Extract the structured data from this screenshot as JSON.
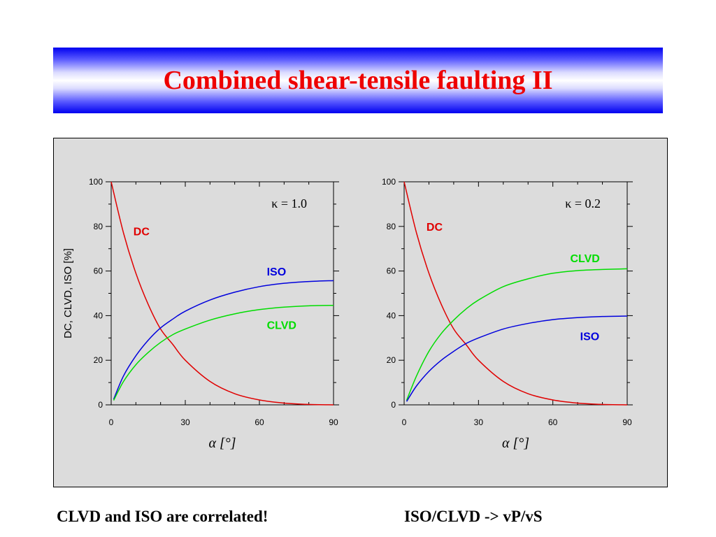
{
  "slide": {
    "title": "Combined shear-tensile faulting II",
    "caption_left": "CLVD and ISO are correlated!",
    "caption_right": "ISO/CLVD -> vP/vS"
  },
  "colors": {
    "DC": "#e00000",
    "ISO": "#0000dd",
    "CLVD": "#00dd00",
    "title": "#ee0000",
    "panel_bg": "#dcdcdc"
  },
  "chart_data": [
    {
      "type": "line",
      "annotation": "κ = 1.0",
      "xlabel": "α [°]",
      "ylabel": "DC, CLVD, ISO [%]",
      "xlim": [
        0,
        90
      ],
      "ylim": [
        0,
        100
      ],
      "xticks": [
        0,
        30,
        60,
        90
      ],
      "yticks": [
        0,
        20,
        40,
        60,
        80,
        100
      ],
      "grid": false,
      "x": [
        1,
        5,
        10,
        15,
        20,
        25,
        30,
        40,
        50,
        60,
        70,
        80,
        90
      ],
      "series": [
        {
          "name": "DC",
          "color": "#e00000",
          "x": [
            0,
            5,
            10,
            15,
            20,
            25,
            30,
            40,
            50,
            60,
            70,
            80,
            90
          ],
          "values": [
            100,
            77,
            59,
            45,
            34,
            27,
            20,
            10.5,
            5,
            2.2,
            0.8,
            0.2,
            0
          ]
        },
        {
          "name": "ISO",
          "color": "#0000dd",
          "values": [
            2.5,
            13,
            22,
            29,
            34.5,
            38.5,
            42,
            47,
            50.5,
            53,
            54.5,
            55.3,
            55.7
          ]
        },
        {
          "name": "CLVD",
          "color": "#00dd00",
          "values": [
            2,
            10.5,
            18,
            23.5,
            28,
            31.5,
            34,
            38,
            40.8,
            42.7,
            43.8,
            44.4,
            44.6
          ]
        }
      ],
      "labels": [
        {
          "name": "DC",
          "text": "DC",
          "x": 9,
          "y": 76
        },
        {
          "name": "ISO",
          "text": "ISO",
          "x": 63,
          "y": 58
        },
        {
          "name": "CLVD",
          "text": "CLVD",
          "x": 63,
          "y": 34
        }
      ]
    },
    {
      "type": "line",
      "annotation": "κ = 0.2",
      "xlabel": "α [°]",
      "ylabel": "",
      "xlim": [
        0,
        90
      ],
      "ylim": [
        0,
        100
      ],
      "xticks": [
        0,
        30,
        60,
        90
      ],
      "yticks": [
        0,
        20,
        40,
        60,
        80,
        100
      ],
      "grid": false,
      "x": [
        1,
        5,
        10,
        15,
        20,
        25,
        30,
        40,
        50,
        60,
        70,
        80,
        90
      ],
      "series": [
        {
          "name": "DC",
          "color": "#e00000",
          "x": [
            0,
            5,
            10,
            15,
            20,
            25,
            30,
            40,
            50,
            60,
            70,
            80,
            90
          ],
          "values": [
            100,
            77,
            59,
            45,
            34,
            27,
            20,
            10.5,
            5,
            2.2,
            0.8,
            0.2,
            0
          ]
        },
        {
          "name": "CLVD",
          "color": "#00dd00",
          "values": [
            2,
            13,
            24,
            32,
            38,
            43,
            47,
            53,
            56.5,
            59,
            60.2,
            60.7,
            61
          ]
        },
        {
          "name": "ISO",
          "color": "#0000dd",
          "values": [
            1.5,
            8.5,
            15,
            20,
            24,
            27.5,
            30,
            34,
            36.5,
            38.2,
            39.1,
            39.6,
            39.8
          ]
        }
      ],
      "labels": [
        {
          "name": "DC",
          "text": "DC",
          "x": 9,
          "y": 78
        },
        {
          "name": "CLVD",
          "text": "CLVD",
          "x": 67,
          "y": 64
        },
        {
          "name": "ISO",
          "text": "ISO",
          "x": 71,
          "y": 29
        }
      ]
    }
  ]
}
